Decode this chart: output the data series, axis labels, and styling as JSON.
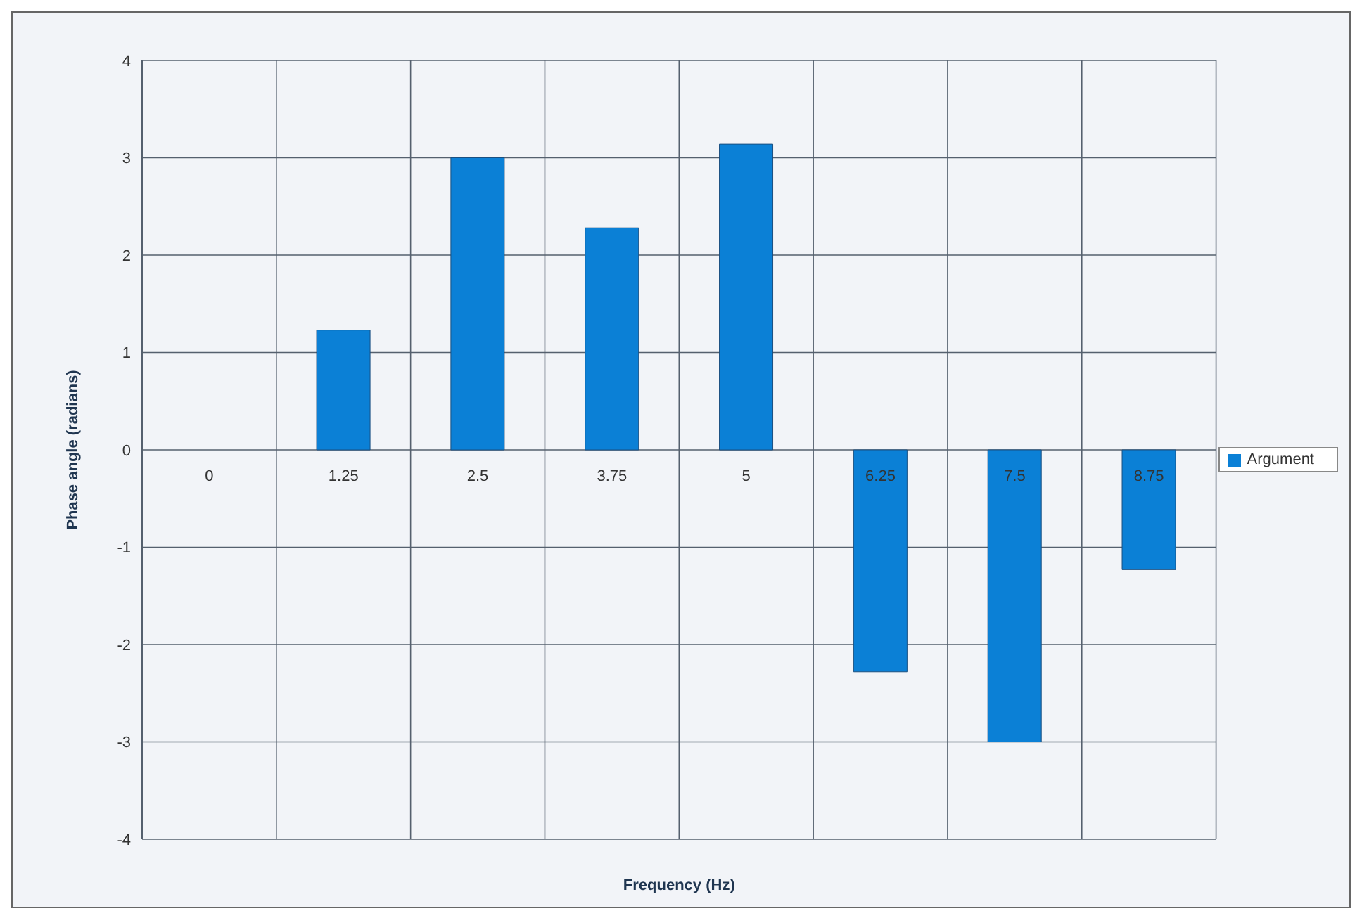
{
  "chart_data": {
    "type": "bar",
    "xlabel": "Frequency (Hz)",
    "ylabel": "Phase angle (radians)",
    "categories": [
      "0",
      "1.25",
      "2.5",
      "3.75",
      "5",
      "6.25",
      "7.5",
      "8.75"
    ],
    "series": [
      {
        "name": "Argument",
        "color": "#0b80d6",
        "values": [
          0,
          1.23,
          3.0,
          2.28,
          3.14,
          -2.28,
          -3.0,
          -1.23
        ]
      }
    ],
    "ylim": [
      -4,
      4
    ],
    "yticks": [
      -4,
      -3,
      -2,
      -1,
      0,
      1,
      2,
      3,
      4
    ],
    "grid": true,
    "legend": "right"
  }
}
